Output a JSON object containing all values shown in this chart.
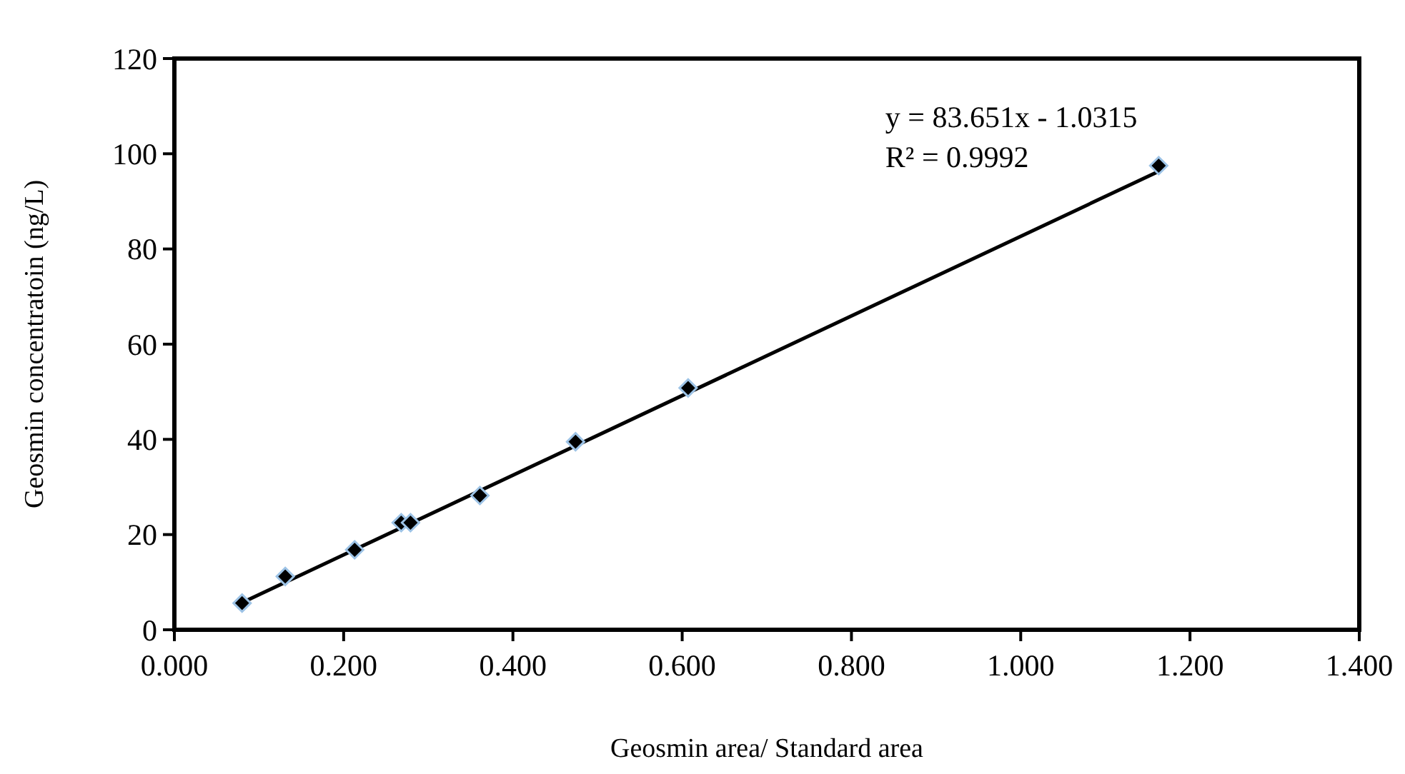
{
  "chart_data": {
    "type": "scatter",
    "xlabel": "Geosmin area/ Standard area",
    "ylabel": "Geosmin concentratoin (ng/L)",
    "xlim": [
      0,
      1.4
    ],
    "xticks": [
      {
        "value": 0,
        "label": "0.000"
      },
      {
        "value": 0.2,
        "label": "0.200"
      },
      {
        "value": 0.4,
        "label": "0.400"
      },
      {
        "value": 0.6,
        "label": "0.600"
      },
      {
        "value": 0.8,
        "label": "0.800"
      },
      {
        "value": 1.0,
        "label": "1.000"
      },
      {
        "value": 1.2,
        "label": "1.200"
      },
      {
        "value": 1.4,
        "label": "1.400"
      }
    ],
    "ylim": [
      0,
      120
    ],
    "yticks": [
      0,
      20,
      40,
      60,
      80,
      100,
      120
    ],
    "grid": false,
    "annotations": [
      "y = 83.651x - 1.0315",
      "R² = 0.9992"
    ],
    "series": [
      {
        "marker": "diamond",
        "color": "#000000",
        "x": [
          0.08,
          0.131,
          0.213,
          0.268,
          0.279,
          0.361,
          0.474,
          0.607,
          1.163
        ],
        "values": [
          5.6,
          11.2,
          16.8,
          22.5,
          22.5,
          28.2,
          39.5,
          50.8,
          97.5
        ]
      },
      {
        "type": "line",
        "color": "#000000",
        "x": [
          0.08,
          1.163
        ],
        "values": [
          5.7,
          96.3
        ]
      }
    ]
  }
}
